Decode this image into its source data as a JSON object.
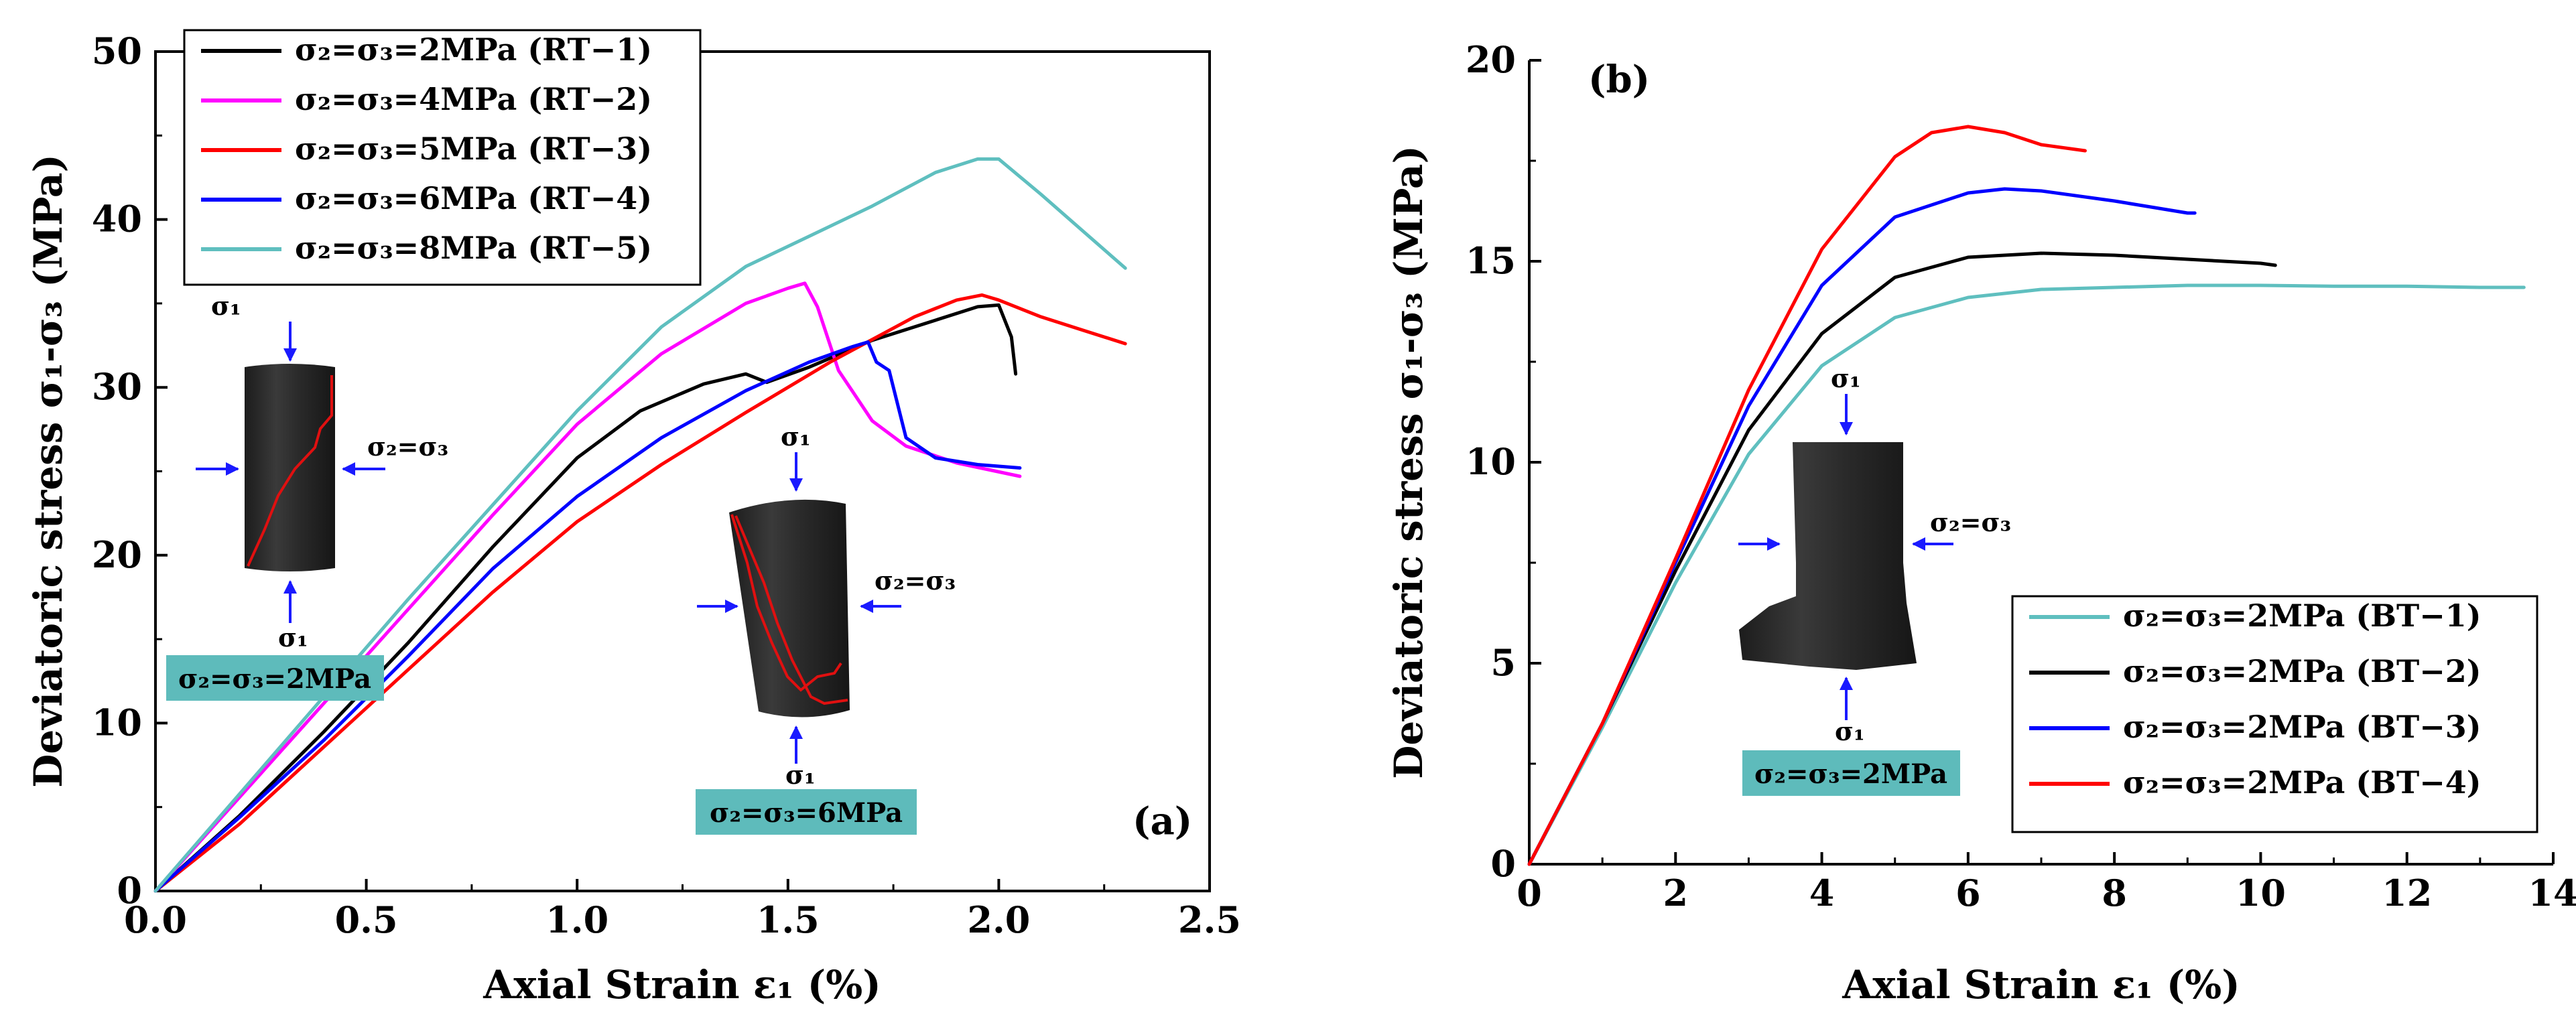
{
  "chart_data": [
    {
      "type": "line",
      "panel_label": "(a)",
      "xlabel": "Axial Strain ε₁ (%)",
      "ylabel": "Deviatoric stress σ₁-σ₃ (MPa)",
      "xlim": [
        0,
        2.5
      ],
      "ylim": [
        0,
        50
      ],
      "xticks": [
        "0.0",
        "0.5",
        "1.0",
        "1.5",
        "2.0",
        "2.5"
      ],
      "yticks": [
        "0",
        "10",
        "20",
        "30",
        "40",
        "50"
      ],
      "legend_position": "top-left",
      "series": [
        {
          "name": "σ₂=σ₃=2MPa  (RT−1)",
          "color": "#000000",
          "x": [
            0,
            0.2,
            0.4,
            0.6,
            0.8,
            1.0,
            1.15,
            1.3,
            1.4,
            1.45,
            1.55,
            1.7,
            1.85,
            1.95,
            2.0,
            2.03,
            2.04
          ],
          "y": [
            0,
            4.5,
            9.5,
            14.8,
            20.5,
            25.8,
            28.6,
            30.2,
            30.8,
            30.3,
            31.2,
            32.8,
            34.0,
            34.8,
            34.9,
            33.0,
            30.8
          ]
        },
        {
          "name": "σ₂=σ₃=4MPa  (RT−2)",
          "color": "#ff00ff",
          "x": [
            0,
            0.2,
            0.4,
            0.6,
            0.8,
            1.0,
            1.2,
            1.4,
            1.5,
            1.54,
            1.57,
            1.62,
            1.7,
            1.78,
            1.9,
            2.05
          ],
          "y": [
            0,
            5.6,
            11.2,
            16.8,
            22.4,
            27.8,
            32.0,
            35.0,
            35.9,
            36.2,
            34.8,
            31.0,
            28.0,
            26.5,
            25.5,
            24.7
          ]
        },
        {
          "name": "σ₂=σ₃=5MPa  (RT−3)",
          "color": "#ff0000",
          "x": [
            0,
            0.2,
            0.4,
            0.6,
            0.8,
            1.0,
            1.2,
            1.4,
            1.6,
            1.8,
            1.9,
            1.96,
            2.0,
            2.1,
            2.2,
            2.3
          ],
          "y": [
            0,
            4.0,
            8.6,
            13.2,
            17.8,
            22.0,
            25.4,
            28.5,
            31.5,
            34.2,
            35.2,
            35.5,
            35.2,
            34.2,
            33.4,
            32.6
          ]
        },
        {
          "name": "σ₂=σ₃=6MPa  (RT−4)",
          "color": "#0000ff",
          "x": [
            0,
            0.2,
            0.4,
            0.6,
            0.8,
            1.0,
            1.2,
            1.4,
            1.55,
            1.65,
            1.69,
            1.71,
            1.74,
            1.78,
            1.85,
            1.95,
            2.05
          ],
          "y": [
            0,
            4.4,
            9.0,
            14.0,
            19.2,
            23.5,
            27.0,
            29.8,
            31.5,
            32.4,
            32.7,
            31.5,
            31.0,
            27.0,
            25.8,
            25.4,
            25.2
          ]
        },
        {
          "name": "σ₂=σ₃=8MPa  (RT−5)",
          "color": "#5fbfbf",
          "x": [
            0,
            0.2,
            0.4,
            0.6,
            0.8,
            1.0,
            1.2,
            1.4,
            1.55,
            1.7,
            1.85,
            1.95,
            2.0,
            2.1,
            2.2,
            2.3
          ],
          "y": [
            0,
            5.8,
            11.6,
            17.4,
            23.0,
            28.6,
            33.6,
            37.2,
            39.0,
            40.8,
            42.8,
            43.6,
            43.6,
            41.5,
            39.3,
            37.1
          ]
        }
      ],
      "annotations": {
        "specimen1": {
          "sigma1_top": "σ₁",
          "sigma1_bottom": "σ₁",
          "sigma23": "σ₂=σ₃",
          "caption": "σ₂=σ₃=2MPa"
        },
        "specimen2": {
          "sigma1_top": "σ₁",
          "sigma1_bottom": "σ₁",
          "sigma23": "σ₂=σ₃",
          "caption": "σ₂=σ₃=6MPa"
        }
      }
    },
    {
      "type": "line",
      "panel_label": "(b)",
      "xlabel": "Axial Strain ε₁ (%)",
      "ylabel": "Deviatoric stress σ₁-σ₃ (MPa)",
      "xlim": [
        0,
        14
      ],
      "ylim": [
        0,
        20
      ],
      "xticks": [
        "0",
        "2",
        "4",
        "6",
        "8",
        "10",
        "12",
        "14"
      ],
      "yticks": [
        "0",
        "5",
        "10",
        "15",
        "20"
      ],
      "legend_position": "bottom-right",
      "series": [
        {
          "name": "σ₂=σ₃=2MPa  (BT−1)",
          "color": "#5fbfbf",
          "x": [
            0,
            1,
            2,
            3,
            4,
            5,
            6,
            7,
            8,
            9,
            10,
            11,
            12,
            13,
            13.6
          ],
          "y": [
            0,
            3.4,
            7.0,
            10.2,
            12.4,
            13.6,
            14.1,
            14.3,
            14.35,
            14.4,
            14.4,
            14.38,
            14.38,
            14.35,
            14.35
          ]
        },
        {
          "name": "σ₂=σ₃=2MPa  (BT−2)",
          "color": "#000000",
          "x": [
            0,
            1,
            2,
            3,
            4,
            5,
            6,
            7,
            8,
            9,
            10,
            10.2
          ],
          "y": [
            0,
            3.5,
            7.3,
            10.8,
            13.2,
            14.6,
            15.1,
            15.2,
            15.15,
            15.05,
            14.95,
            14.9
          ]
        },
        {
          "name": "σ₂=σ₃=2MPa  (BT−3)",
          "color": "#0000ff",
          "x": [
            0,
            1,
            2,
            3,
            4,
            5,
            6,
            6.5,
            7,
            8,
            9,
            9.1
          ],
          "y": [
            0,
            3.5,
            7.5,
            11.4,
            14.4,
            16.1,
            16.7,
            16.8,
            16.75,
            16.5,
            16.2,
            16.2
          ]
        },
        {
          "name": "σ₂=σ₃=2MPa  (BT−4)",
          "color": "#ff0000",
          "x": [
            0,
            1,
            2,
            3,
            4,
            5,
            5.5,
            6,
            6.5,
            7,
            7.6
          ],
          "y": [
            0,
            3.5,
            7.6,
            11.8,
            15.3,
            17.6,
            18.2,
            18.35,
            18.2,
            17.9,
            17.75
          ]
        }
      ],
      "annotations": {
        "specimen": {
          "sigma1_top": "σ₁",
          "sigma1_bottom": "σ₁",
          "sigma23": "σ₂=σ₃",
          "caption": "σ₂=σ₃=2MPa"
        }
      }
    }
  ]
}
